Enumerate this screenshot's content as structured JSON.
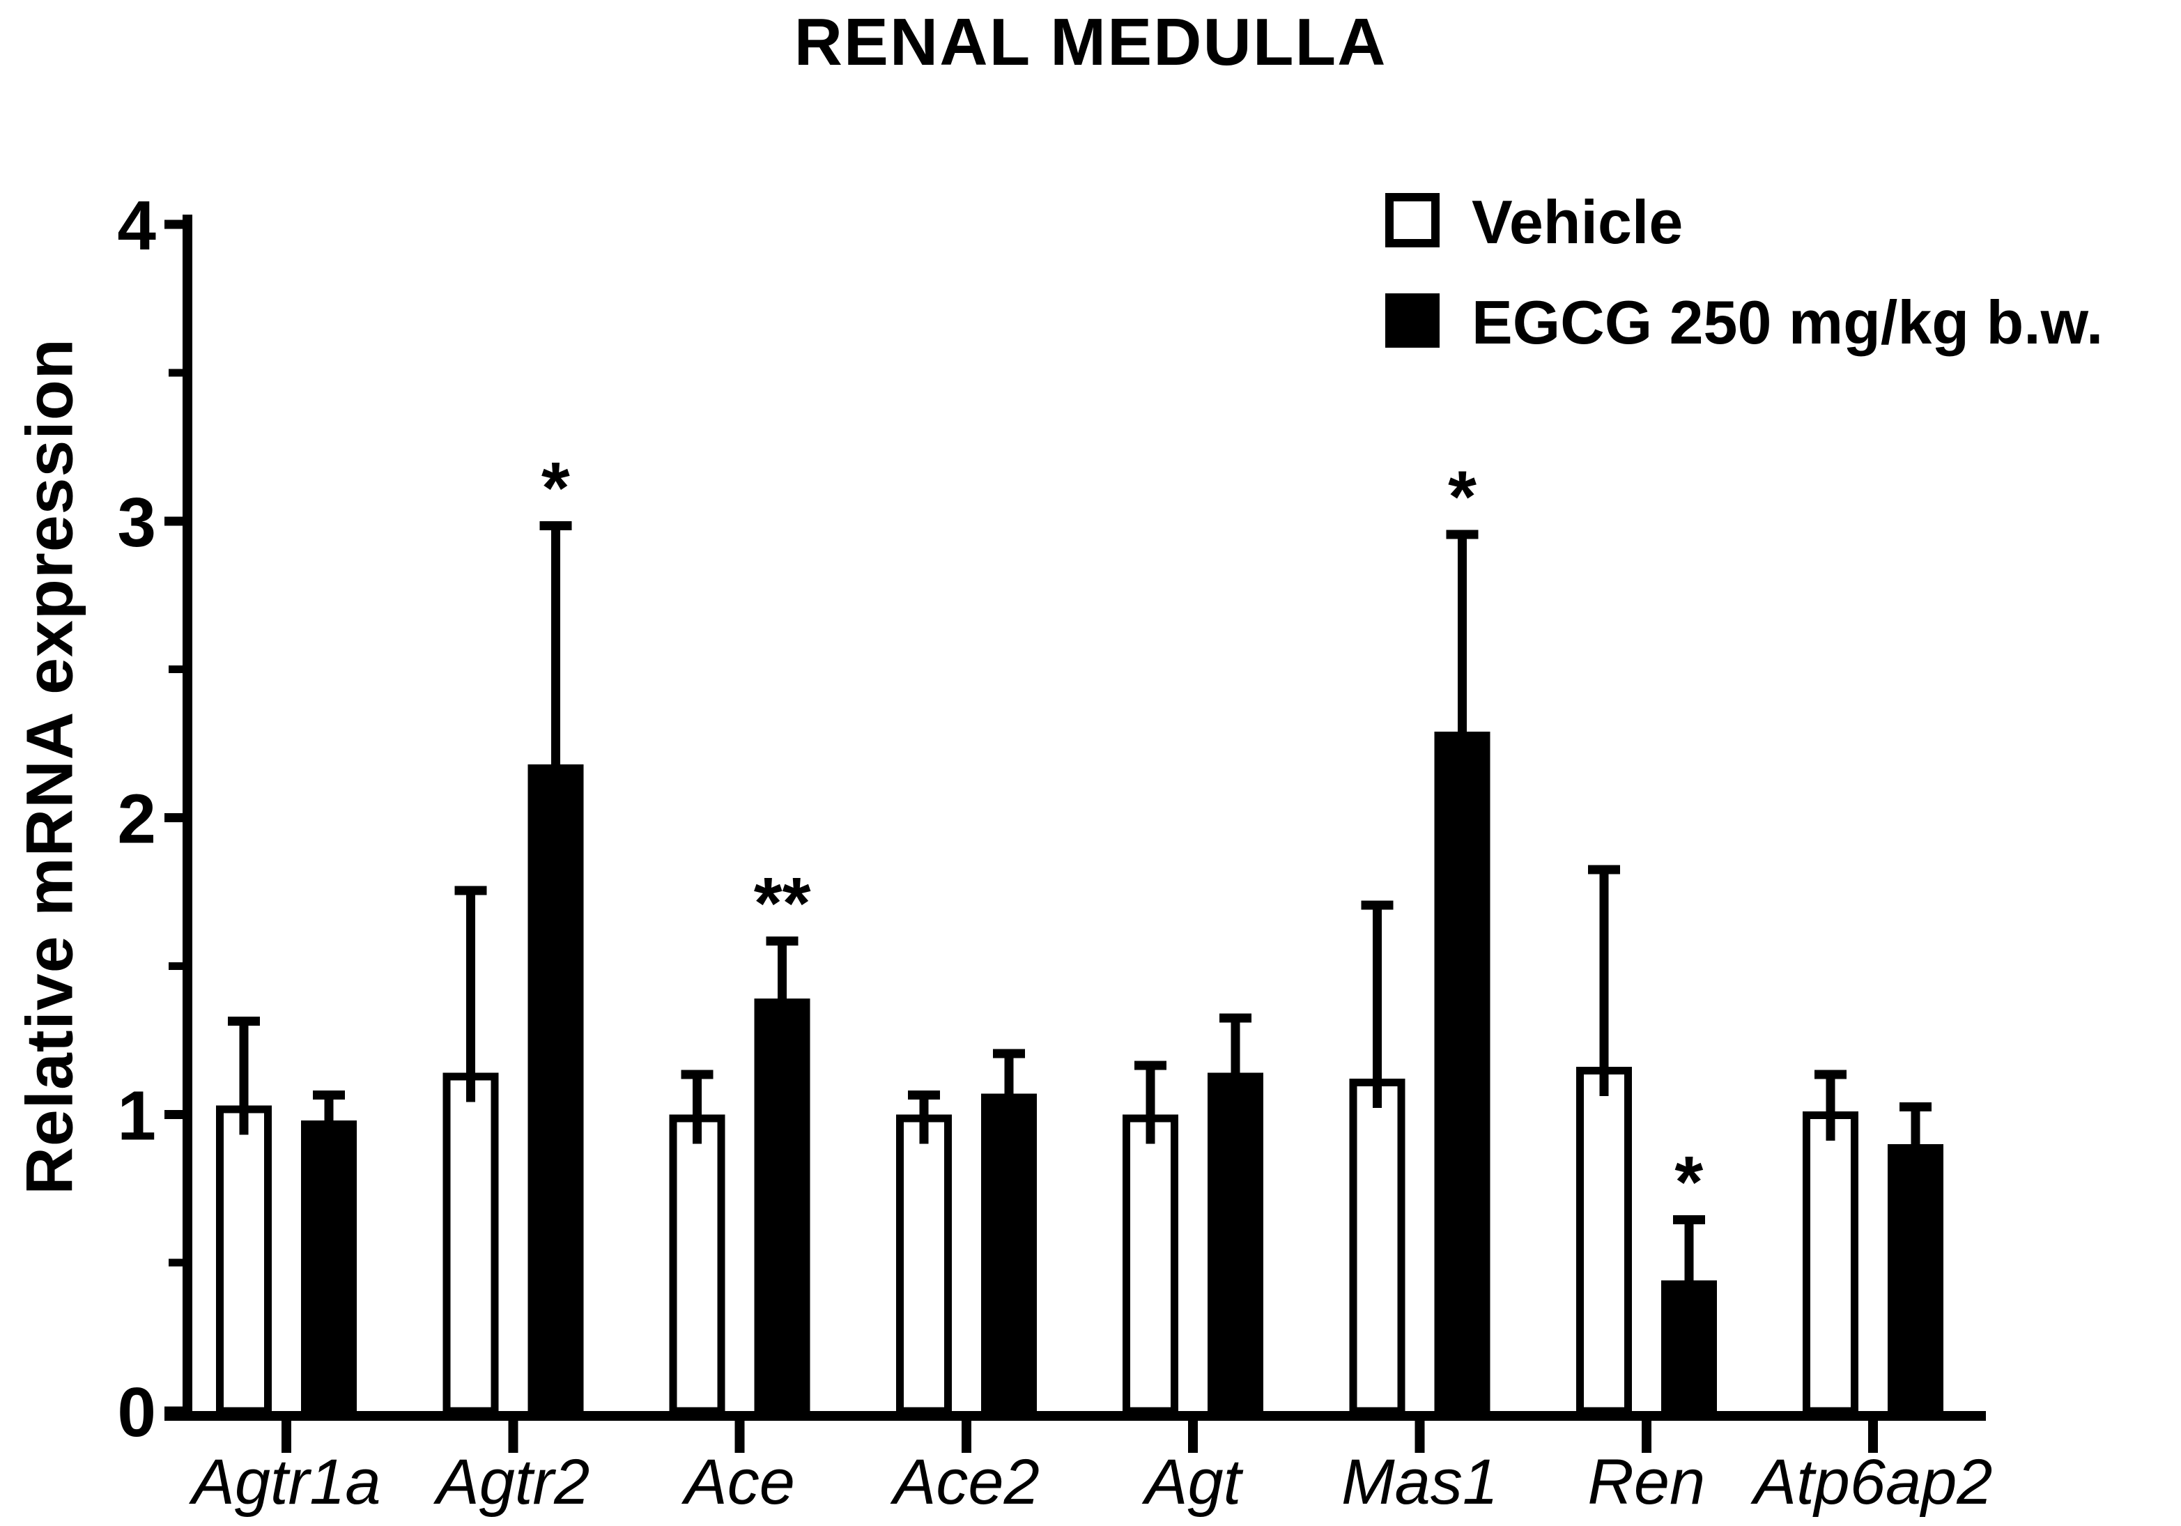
{
  "title": "RENAL MEDULLA",
  "legend": [
    {
      "label": "Vehicle",
      "fill": "#ffffff"
    },
    {
      "label": "EGCG 250 mg/kg b.w.",
      "fill": "#000000"
    }
  ],
  "chart_data": {
    "type": "bar",
    "title": "RENAL MEDULLA",
    "xlabel": "",
    "ylabel": "Relative mRNA expression",
    "ylim": [
      0,
      4
    ],
    "yticks": [
      "0",
      "1",
      "2",
      "3",
      "4"
    ],
    "minor_yticks": [
      0.5,
      1.5,
      2.5,
      3.5
    ],
    "grid": false,
    "legend_position": "top-right",
    "error_bar_style": "upper SD whisker with cap",
    "categories": [
      "Agtr1a",
      "Agtr2",
      "Ace",
      "Ace2",
      "Agt",
      "Mas1",
      "Ren",
      "Atp6ap2"
    ],
    "series": [
      {
        "name": "Vehicle",
        "fill": "#ffffff",
        "values": [
          1.03,
          1.14,
          1.0,
          1.0,
          1.0,
          1.12,
          1.16,
          1.01
        ],
        "errors": [
          0.3,
          0.63,
          0.15,
          0.08,
          0.18,
          0.6,
          0.68,
          0.14
        ],
        "annotations": [
          "",
          "",
          "",
          "",
          "",
          "",
          "",
          ""
        ]
      },
      {
        "name": "EGCG 250 mg/kg b.w.",
        "fill": "#000000",
        "values": [
          0.98,
          2.18,
          1.39,
          1.07,
          1.14,
          2.29,
          0.44,
          0.9
        ],
        "errors": [
          0.1,
          0.82,
          0.21,
          0.15,
          0.2,
          0.68,
          0.22,
          0.14
        ],
        "annotations": [
          "",
          "*",
          "**",
          "",
          "",
          "*",
          "*",
          ""
        ]
      }
    ]
  }
}
